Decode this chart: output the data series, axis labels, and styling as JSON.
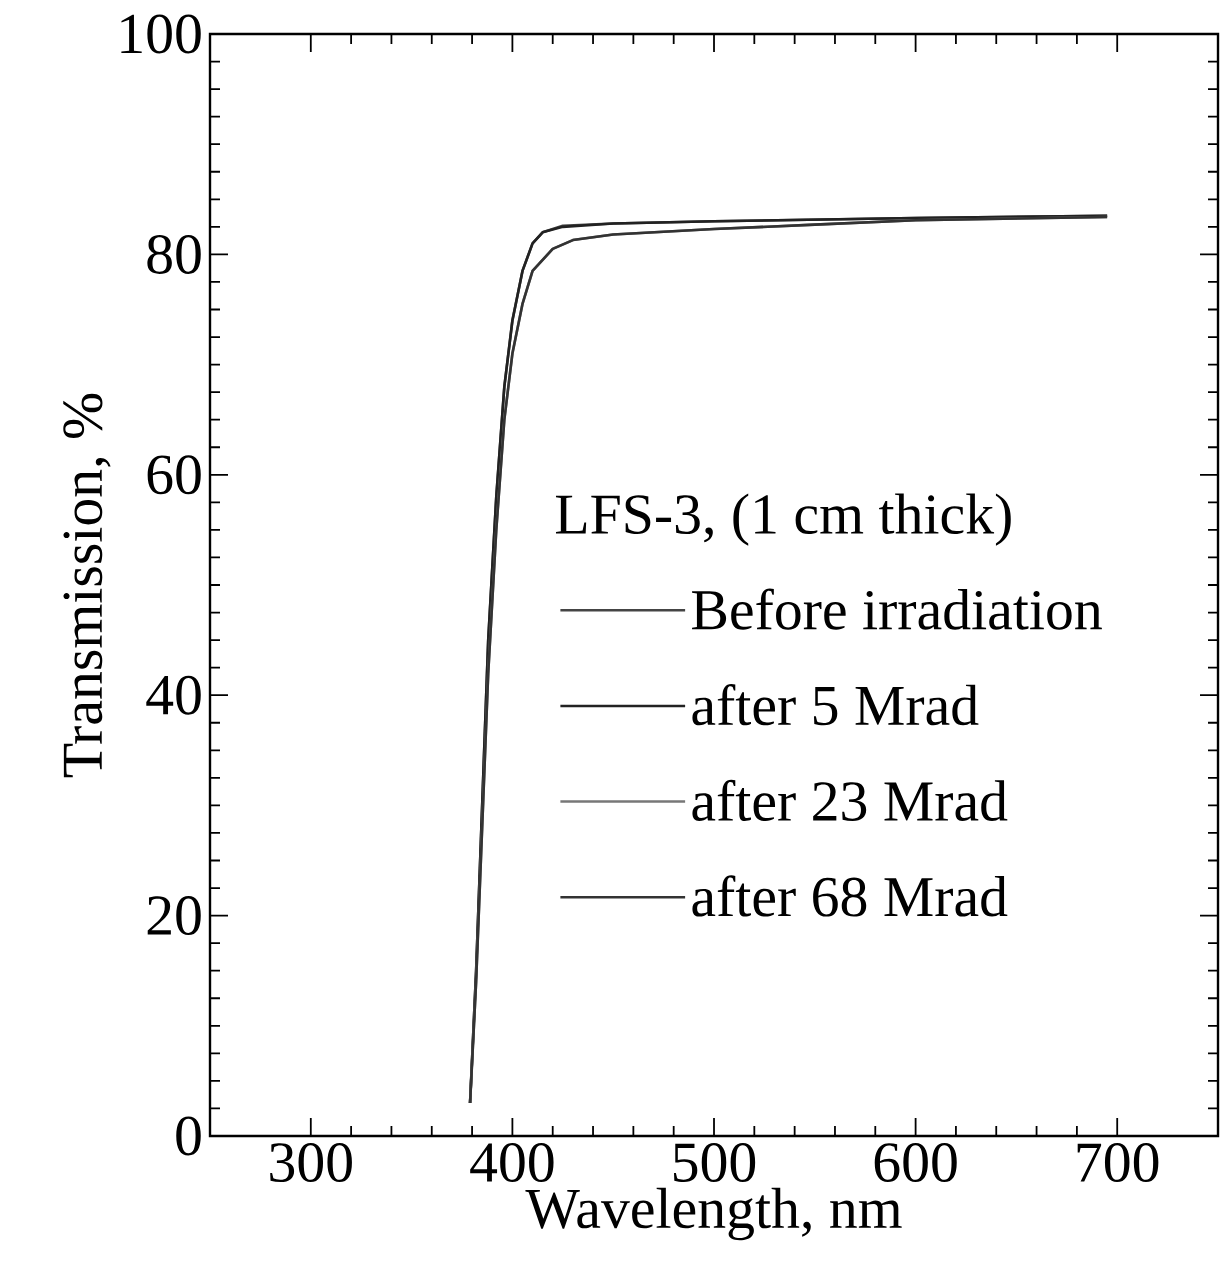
{
  "chart_data": {
    "type": "line",
    "xlabel": "Wavelength, nm",
    "ylabel": "Transmission, %",
    "legend_title": "LFS-3, (1 cm thick)",
    "xlim": [
      250,
      750
    ],
    "xticks": [
      300,
      400,
      500,
      600,
      700
    ],
    "ylim": [
      0,
      100
    ],
    "yticks": [
      0,
      20,
      40,
      60,
      80,
      100
    ],
    "grid": false,
    "legend": "right",
    "line_style": "solid",
    "series": [
      {
        "name": "Before irradiation",
        "color": "#444444",
        "x": [
          379,
          382,
          385,
          388,
          392,
          396,
          400,
          405,
          410,
          415,
          425,
          450,
          500,
          600,
          695
        ],
        "values": [
          3,
          15,
          30,
          45,
          58,
          68,
          74,
          78.5,
          81,
          82,
          82.6,
          82.8,
          83,
          83.3,
          83.5
        ]
      },
      {
        "name": "after 5 Mrad",
        "color": "#222222",
        "x": [
          379,
          382,
          385,
          388,
          392,
          396,
          400,
          405,
          410,
          415,
          425,
          450,
          500,
          600,
          695
        ],
        "values": [
          3,
          15,
          30,
          45,
          58,
          68,
          74,
          78.5,
          81,
          82,
          82.5,
          82.8,
          83,
          83.3,
          83.5
        ]
      },
      {
        "name": "after 23 Mrad",
        "color": "#777777",
        "x": [
          379,
          382,
          385,
          388,
          392,
          396,
          400,
          405,
          410,
          420,
          430,
          450,
          500,
          550,
          600,
          695
        ],
        "values": [
          3,
          14,
          28,
          42,
          55,
          65,
          71,
          75.5,
          78.5,
          80.5,
          81.3,
          81.8,
          82.3,
          82.7,
          83.1,
          83.4
        ]
      },
      {
        "name": "after 68 Mrad",
        "color": "#333333",
        "x": [
          379,
          382,
          385,
          388,
          392,
          396,
          400,
          405,
          410,
          420,
          430,
          450,
          500,
          550,
          600,
          695
        ],
        "values": [
          3,
          14,
          28,
          42,
          55,
          65,
          71,
          75.5,
          78.5,
          80.5,
          81.3,
          81.8,
          82.3,
          82.7,
          83.1,
          83.4
        ]
      }
    ]
  }
}
